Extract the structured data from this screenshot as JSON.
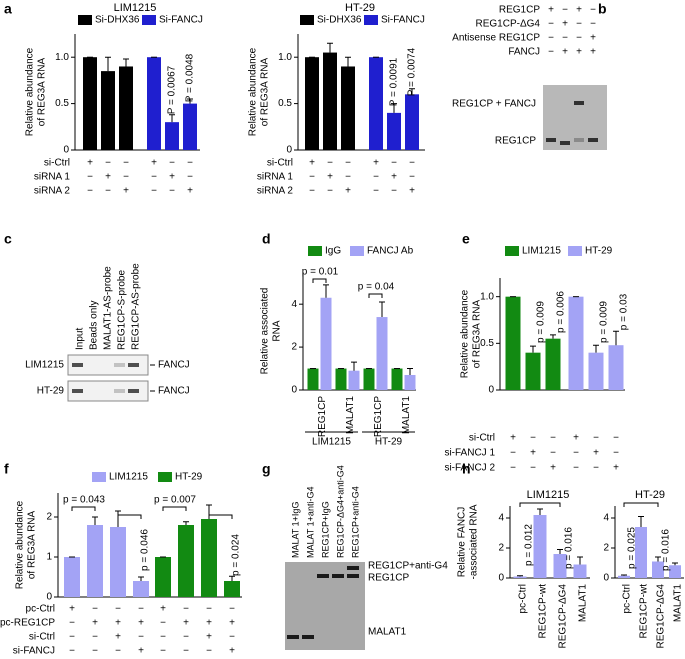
{
  "panel_labels": [
    "a",
    "b",
    "c",
    "d",
    "e",
    "f",
    "g",
    "h"
  ],
  "chart_data": [
    {
      "type": "bar",
      "title": "LIM1215",
      "ylabel": [
        "Relative abundance",
        "of REG3A RNA"
      ],
      "ylim": [
        0,
        1.25
      ],
      "yticks": [
        0,
        0.5,
        {
          "value": 1,
          "label": "1.0"
        }
      ],
      "series": [
        {
          "name": "Si-DHX36",
          "color": "#000000",
          "values": [
            1.0,
            0.85,
            0.9
          ],
          "errors": [
            0,
            0.15,
            0.08
          ]
        },
        {
          "name": "Si-FANCJ",
          "color": "#1f1fcf",
          "values": [
            1.0,
            0.3,
            0.5
          ],
          "errors": [
            0,
            0.08,
            0.05
          ]
        }
      ],
      "annotations": [
        "P = 0.0067",
        "P = 0.0048"
      ],
      "table": [
        {
          "label": "si-Ctrl",
          "marks": [
            "+",
            "−",
            "−",
            "+",
            "−",
            "−"
          ]
        },
        {
          "label": "siRNA 1",
          "marks": [
            "−",
            "+",
            "−",
            "−",
            "+",
            "−"
          ]
        },
        {
          "label": "siRNA 2",
          "marks": [
            "−",
            "−",
            "+",
            "−",
            "−",
            "+"
          ]
        }
      ]
    },
    {
      "type": "bar",
      "title": "HT-29",
      "ylabel": [
        "Relative abundance",
        "of REG3A RNA"
      ],
      "ylim": [
        0,
        1.25
      ],
      "yticks": [
        0,
        0.5,
        {
          "value": 1,
          "label": "1.0"
        }
      ],
      "series": [
        {
          "name": "Si-DHX36",
          "color": "#000000",
          "values": [
            1.0,
            1.05,
            0.9
          ],
          "errors": [
            0,
            0.1,
            0.1
          ]
        },
        {
          "name": "Si-FANCJ",
          "color": "#1f1fcf",
          "values": [
            1.0,
            0.4,
            0.6
          ],
          "errors": [
            0,
            0.1,
            0.06
          ]
        }
      ],
      "annotations": [
        "P = 0.0091",
        "P = 0.0074"
      ],
      "table": [
        {
          "label": "si-Ctrl",
          "marks": [
            "+",
            "−",
            "−",
            "+",
            "−",
            "−"
          ]
        },
        {
          "label": "siRNA 1",
          "marks": [
            "−",
            "+",
            "−",
            "−",
            "+",
            "−"
          ]
        },
        {
          "label": "siRNA 2",
          "marks": [
            "−",
            "−",
            "+",
            "−",
            "−",
            "+"
          ]
        }
      ]
    },
    {
      "type": "bar",
      "ylabel": [
        "Relative associated",
        "RNA"
      ],
      "ylim": [
        0,
        5.5
      ],
      "yticks": [
        0,
        2,
        4
      ],
      "categories": [
        "REG1CP",
        "MALAT1",
        "REG1CP",
        "MALAT1"
      ],
      "groups": [
        "LIM1215",
        "HT-29"
      ],
      "series": [
        {
          "name": "IgG",
          "color": "#128a12",
          "values": [
            1,
            1,
            1,
            1
          ],
          "errors": [
            0,
            0,
            0,
            0
          ]
        },
        {
          "name": "FANCJ Ab",
          "color": "#a3a3f5",
          "values": [
            4.3,
            0.9,
            3.4,
            0.7
          ],
          "errors": [
            0.6,
            0.4,
            0.7,
            0.3
          ]
        }
      ],
      "annotations": [
        "p = 0.01",
        "p = 0.04"
      ]
    },
    {
      "type": "bar",
      "ylabel": [
        "Relative abundance",
        "of REG3A RNA"
      ],
      "ylim": [
        0,
        1.2
      ],
      "yticks": [
        0,
        0.5,
        {
          "value": 1,
          "label": "1.0"
        }
      ],
      "series": [
        {
          "name": "LIM1215",
          "color": "#128a12",
          "values": [
            1.0,
            0.4,
            0.55
          ],
          "errors": [
            0,
            0.07,
            0.04
          ]
        },
        {
          "name": "HT-29",
          "color": "#a3a3f5",
          "values": [
            1.0,
            0.4,
            0.48
          ],
          "errors": [
            0,
            0.08,
            0.15
          ]
        }
      ],
      "annotations": [
        "p = 0.009",
        "p = 0.006",
        "p = 0.009",
        "p = 0.03"
      ],
      "table": [
        {
          "label": "si-Ctrl",
          "marks": [
            "+",
            "−",
            "−",
            "+",
            "−",
            "−"
          ]
        },
        {
          "label": "si-FANCJ 1",
          "marks": [
            "−",
            "+",
            "−",
            "−",
            "+",
            "−"
          ]
        },
        {
          "label": "si-FANCJ 2",
          "marks": [
            "−",
            "−",
            "+",
            "−",
            "−",
            "+"
          ]
        }
      ]
    },
    {
      "type": "bar",
      "ylabel": [
        "Relative abundance",
        "of REG3A RNA"
      ],
      "ylim": [
        0,
        2.6
      ],
      "yticks": [
        0,
        1,
        2
      ],
      "series": [
        {
          "name": "LIM1215",
          "color": "#a3a3f5",
          "values": [
            1,
            1.8,
            1.75,
            0.4
          ],
          "errors": [
            0,
            0.2,
            0.4,
            0.1
          ]
        },
        {
          "name": "HT-29",
          "color": "#128a12",
          "values": [
            1,
            1.8,
            1.95,
            0.4
          ],
          "errors": [
            0,
            0.08,
            0.35,
            0.12
          ]
        }
      ],
      "annotations": [
        "p = 0.043",
        "p = 0.046",
        "p = 0.007",
        "p = 0.024"
      ],
      "table": [
        {
          "label": "pc-Ctrl",
          "marks": [
            "+",
            "−",
            "−",
            "−",
            "+",
            "−",
            "−",
            "−"
          ]
        },
        {
          "label": "pc-REG1CP",
          "marks": [
            "−",
            "+",
            "+",
            "+",
            "−",
            "+",
            "+",
            "+"
          ]
        },
        {
          "label": "si-Ctrl",
          "marks": [
            "−",
            "−",
            "+",
            "−",
            "−",
            "−",
            "+",
            "−"
          ]
        },
        {
          "label": "si-FANCJ",
          "marks": [
            "−",
            "−",
            "−",
            "+",
            "−",
            "−",
            "−",
            "+"
          ]
        }
      ]
    },
    {
      "type": "bar",
      "title": "LIM1215",
      "ylabel": [
        "Relative FANCJ",
        "-associated RNA"
      ],
      "ylim": [
        0,
        4.8
      ],
      "yticks": [
        0,
        2,
        4
      ],
      "categories": [
        "pc-Ctrl",
        "REG1CP-wt",
        "REG1CP-ΔG4",
        "MALAT1"
      ],
      "series": [
        {
          "color": "#a3a3f5",
          "values": [
            0.1,
            4.2,
            1.6,
            0.9
          ],
          "errors": [
            0.05,
            0.4,
            0.3,
            0.5
          ]
        }
      ],
      "annotations": [
        "p = 0.012",
        "p = 0.016"
      ]
    },
    {
      "type": "bar",
      "title": "HT-29",
      "ylim": [
        0,
        4.8
      ],
      "yticks": [
        0,
        2,
        4
      ],
      "categories": [
        "pc-Ctrl",
        "REG1CP-wt",
        "REG1CP-ΔG4",
        "MALAT1"
      ],
      "series": [
        {
          "color": "#a3a3f5",
          "values": [
            0.15,
            3.4,
            1.1,
            0.85
          ],
          "errors": [
            0.05,
            0.7,
            0.3,
            0.15
          ]
        }
      ],
      "annotations": [
        "p = 0.025",
        "p = 0.016"
      ]
    }
  ],
  "gels": {
    "b": {
      "conditions": [
        {
          "label": "REG1CP",
          "marks": [
            "+",
            "−",
            "+",
            "−"
          ]
        },
        {
          "label": "REG1CP-ΔG4",
          "marks": [
            "−",
            "+",
            "−",
            "−"
          ]
        },
        {
          "label": "Antisense REG1CP",
          "marks": [
            "−",
            "−",
            "−",
            "+"
          ]
        },
        {
          "label": "FANCJ",
          "marks": [
            "−",
            "+",
            "+",
            "+"
          ]
        }
      ],
      "bands": [
        "REG1CP + FANCJ",
        "REG1CP"
      ]
    },
    "c": {
      "lanes": [
        "Input",
        "Beads only",
        "MALAT1-AS-probe",
        "REG1CP-S-probe",
        "REG1CP-AS-probe"
      ],
      "rows": [
        "LIM1215",
        "HT-29"
      ],
      "protein": "FANCJ"
    },
    "g": {
      "lanes": [
        "MALAT 1+IgG",
        "MALAT 1+anti-G4",
        "REG1CP+IgG",
        "REG1CP-ΔG4+anti-G4",
        "REG1CP+anti-G4"
      ],
      "bands": [
        "REG1CP+anti-G4",
        "REG1CP",
        "MALAT1"
      ]
    }
  }
}
